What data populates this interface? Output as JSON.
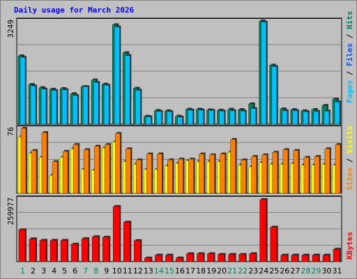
{
  "title": "Daily usage for March 2026",
  "colors": {
    "pages": "#00c0ff",
    "files": "#0050ff",
    "hits": "#00805c",
    "sites": "#ff8000",
    "visits": "#ffff00",
    "kbytes": "#ff0000",
    "weekday_tick": "#000000",
    "weekend_tick": "#00805c"
  },
  "chart_data": [
    {
      "type": "bar",
      "name": "hits-files-pages",
      "x": [
        1,
        2,
        3,
        4,
        5,
        6,
        7,
        8,
        9,
        10,
        11,
        12,
        13,
        14,
        15,
        16,
        17,
        18,
        19,
        20,
        21,
        22,
        23,
        24,
        25,
        26,
        27,
        28,
        29,
        30,
        31
      ],
      "ymax_label": "3249",
      "ymax": 3249,
      "series": [
        {
          "name": "Hits",
          "values": [
            2150,
            1250,
            1150,
            1100,
            1120,
            960,
            1180,
            1390,
            1260,
            3130,
            2250,
            1130,
            250,
            430,
            420,
            250,
            470,
            470,
            450,
            440,
            470,
            460,
            640,
            3250,
            1860,
            480,
            460,
            420,
            460,
            590,
            790
          ]
        },
        {
          "name": "Pages",
          "values": [
            2100,
            1200,
            1100,
            1060,
            1080,
            900,
            1180,
            1310,
            1220,
            3060,
            2160,
            1070,
            230,
            400,
            390,
            220,
            440,
            440,
            430,
            410,
            420,
            410,
            490,
            3210,
            1810,
            420,
            420,
            390,
            400,
            410,
            700
          ]
        }
      ],
      "legend": [
        "Pages",
        "Files",
        "Hits"
      ]
    },
    {
      "type": "bar",
      "name": "sites-visits",
      "x": [
        1,
        2,
        3,
        4,
        5,
        6,
        7,
        8,
        9,
        10,
        11,
        12,
        13,
        14,
        15,
        16,
        17,
        18,
        19,
        20,
        21,
        22,
        23,
        24,
        25,
        26,
        27,
        28,
        29,
        30,
        31
      ],
      "ymax_label": "76",
      "ymax": 76,
      "series": [
        {
          "name": "Visits",
          "values": [
            66,
            47,
            42,
            21,
            42,
            52,
            28,
            27,
            53,
            60,
            37,
            34,
            28,
            28,
            32,
            35,
            38,
            37,
            37,
            37,
            48,
            33,
            31,
            36,
            34,
            34,
            35,
            33,
            33,
            34,
            33
          ]
        },
        {
          "name": "Sites",
          "values": [
            76,
            50,
            71,
            37,
            49,
            57,
            51,
            55,
            57,
            70,
            52,
            39,
            46,
            46,
            39,
            40,
            40,
            46,
            45,
            46,
            63,
            39,
            43,
            45,
            48,
            51,
            50,
            42,
            43,
            52,
            57
          ]
        }
      ],
      "legend": [
        "Sites",
        "Visits"
      ]
    },
    {
      "type": "bar",
      "name": "kbytes",
      "x": [
        1,
        2,
        3,
        4,
        5,
        6,
        7,
        8,
        9,
        10,
        11,
        12,
        13,
        14,
        15,
        16,
        17,
        18,
        19,
        20,
        21,
        22,
        23,
        24,
        25,
        26,
        27,
        28,
        29,
        30,
        31
      ],
      "ymax_label": "259977",
      "ymax": 259977,
      "series": [
        {
          "name": "KBytes",
          "values": [
            133000,
            95000,
            89000,
            89000,
            89000,
            73000,
            96000,
            104000,
            102000,
            231000,
            165000,
            88000,
            15000,
            27000,
            27000,
            15000,
            33000,
            33000,
            33000,
            30000,
            30000,
            30000,
            33000,
            259977,
            144000,
            27000,
            27000,
            27000,
            27000,
            27000,
            52000
          ]
        }
      ],
      "legend": [
        "KBytes"
      ]
    }
  ],
  "x_ticks": [
    {
      "label": "1",
      "weekend": true
    },
    {
      "label": "2",
      "weekend": false
    },
    {
      "label": "3",
      "weekend": false
    },
    {
      "label": "4",
      "weekend": false
    },
    {
      "label": "5",
      "weekend": false
    },
    {
      "label": "6",
      "weekend": false
    },
    {
      "label": "7",
      "weekend": true
    },
    {
      "label": "8",
      "weekend": true
    },
    {
      "label": "9",
      "weekend": false
    },
    {
      "label": "10",
      "weekend": false
    },
    {
      "label": "11",
      "weekend": false
    },
    {
      "label": "12",
      "weekend": false
    },
    {
      "label": "13",
      "weekend": false
    },
    {
      "label": "14",
      "weekend": true
    },
    {
      "label": "15",
      "weekend": true
    },
    {
      "label": "16",
      "weekend": false
    },
    {
      "label": "17",
      "weekend": false
    },
    {
      "label": "18",
      "weekend": false
    },
    {
      "label": "19",
      "weekend": false
    },
    {
      "label": "20",
      "weekend": false
    },
    {
      "label": "21",
      "weekend": true
    },
    {
      "label": "22",
      "weekend": true
    },
    {
      "label": "23",
      "weekend": false
    },
    {
      "label": "24",
      "weekend": false
    },
    {
      "label": "25",
      "weekend": false
    },
    {
      "label": "26",
      "weekend": false
    },
    {
      "label": "27",
      "weekend": false
    },
    {
      "label": "28",
      "weekend": true
    },
    {
      "label": "29",
      "weekend": true
    },
    {
      "label": "30",
      "weekend": false
    },
    {
      "label": "31",
      "weekend": false
    }
  ]
}
